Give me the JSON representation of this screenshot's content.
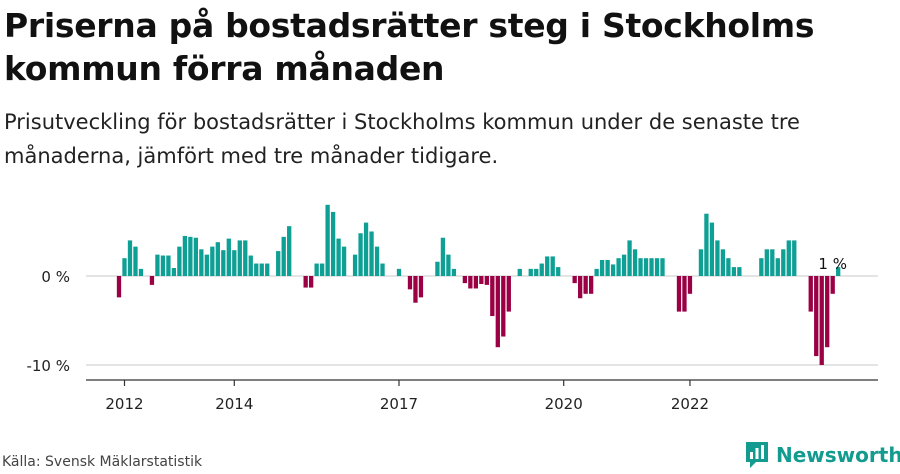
{
  "title": "Priserna på bostadsrätter steg i Stockholms kommun förra månaden",
  "subtitle": "Prisutveckling för bostadsrätter i Stockholms kommun under de senaste tre månaderna, jämfört med tre månader tidigare.",
  "source": "Källa: Svensk Mäklarstatistik",
  "brand": "Newsworthy",
  "colors": {
    "positive": "#0e9f95",
    "negative": "#9b0045",
    "brand": "#129b8e"
  },
  "chart_data": {
    "type": "bar",
    "ylim": [
      -10.5,
      8
    ],
    "yticks": [
      {
        "value": 0,
        "label": "0 %"
      },
      {
        "value": -10,
        "label": "-10 %"
      }
    ],
    "xticks": [
      {
        "index": 1,
        "label": "2012"
      },
      {
        "index": 21,
        "label": "2014"
      },
      {
        "index": 51,
        "label": "2017"
      },
      {
        "index": 81,
        "label": "2020"
      },
      {
        "index": 104,
        "label": "2022"
      }
    ],
    "values": [
      -2.4,
      2,
      4,
      3.3,
      0.8,
      0,
      -1,
      2.4,
      2.3,
      2.3,
      0.9,
      3.3,
      4.5,
      4.4,
      4.3,
      3,
      2.4,
      3.3,
      3.8,
      2.9,
      4.2,
      2.9,
      4,
      4,
      2.3,
      1.4,
      1.4,
      1.4,
      0,
      2.8,
      4.4,
      5.6,
      0,
      0,
      -1.3,
      -1.3,
      1.4,
      1.4,
      8,
      7.2,
      4.2,
      3.3,
      0,
      2.4,
      4.8,
      6,
      5,
      3.3,
      1.4,
      0,
      0,
      0.8,
      0,
      -1.5,
      -3,
      -2.4,
      0,
      0,
      1.6,
      4.3,
      2.4,
      0.8,
      0,
      -0.8,
      -1.4,
      -1.4,
      -0.9,
      -1,
      -4.5,
      -8,
      -6.8,
      -4,
      0,
      0.8,
      0,
      0.8,
      0.8,
      1.4,
      2.2,
      2.2,
      1,
      0,
      0,
      -0.8,
      -2.5,
      -2,
      -2,
      0.8,
      1.8,
      1.8,
      1.3,
      2,
      2.4,
      4,
      3,
      2,
      2,
      2,
      2,
      2,
      0,
      0,
      -4,
      -4,
      -2,
      0,
      3,
      7,
      6,
      4,
      3,
      2,
      1,
      1,
      0,
      0,
      0,
      2,
      3,
      3,
      2,
      3,
      4,
      4,
      0,
      0,
      -4,
      -9,
      -10,
      -8,
      -2,
      1
    ],
    "annotation": {
      "index": 130,
      "label": "1 %"
    }
  }
}
